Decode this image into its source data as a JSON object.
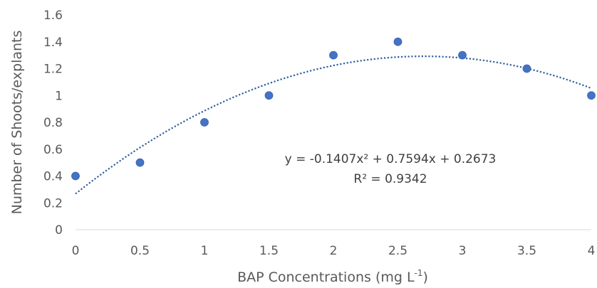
{
  "chart_data": {
    "type": "scatter",
    "xlabel": "BAP Concentrations (mg L",
    "xlabel_sup": "-1",
    "xlabel_end": ")",
    "ylabel": "Number of Shoots/explants",
    "xlim": [
      0,
      4
    ],
    "ylim": [
      0,
      1.6
    ],
    "x_ticks": [
      "0",
      "0.5",
      "1",
      "1.5",
      "2",
      "2.5",
      "3",
      "3.5",
      "4"
    ],
    "y_ticks": [
      "0",
      "0.2",
      "0.4",
      "0.6",
      "0.8",
      "1",
      "1.2",
      "1.4",
      "1.6"
    ],
    "grid": false,
    "legend": "none",
    "marker_color": "#4472c4",
    "series": [
      {
        "x": [
          0,
          0.5,
          1,
          1.5,
          2,
          2.5,
          3,
          3.5,
          4
        ],
        "y": [
          0.4,
          0.5,
          0.8,
          1.0,
          1.3,
          1.4,
          1.3,
          1.2,
          1.0
        ]
      }
    ],
    "trendline": {
      "type": "polynomial",
      "coefficients": [
        -0.1407,
        0.7594,
        0.2673
      ],
      "style": "dotted",
      "color": "#2e5f9e"
    },
    "annotations": {
      "equation": "y = -0.1407x² + 0.7594x + 0.2673",
      "r_squared": "R² = 0.9342"
    }
  }
}
